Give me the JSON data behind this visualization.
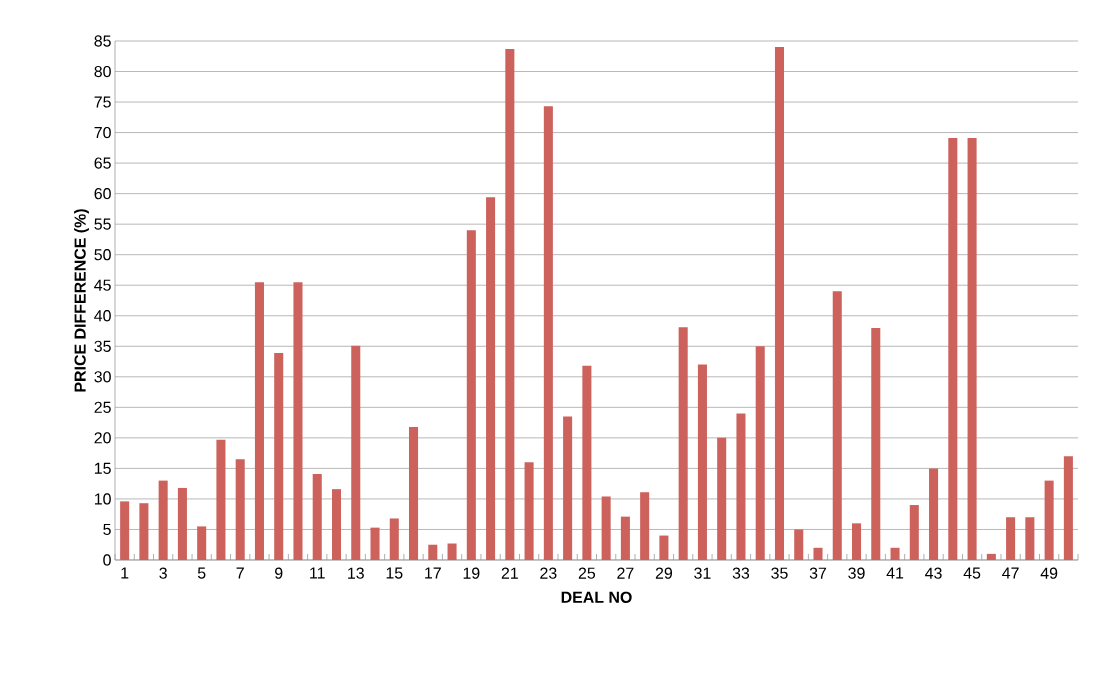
{
  "chart_data": {
    "type": "bar",
    "xlabel": "DEAL NO",
    "ylabel": "PRICE DIFFERENCE (%)",
    "categories": [
      "1",
      null,
      "3",
      null,
      "5",
      null,
      "7",
      null,
      "9",
      null,
      "11",
      null,
      "13",
      null,
      "15",
      null,
      "17",
      null,
      "19",
      null,
      "21",
      null,
      "23",
      null,
      "25",
      null,
      "27",
      null,
      "29",
      null,
      "31",
      null,
      "33",
      null,
      "35",
      null,
      "37",
      null,
      "39",
      null,
      "41",
      null,
      "43",
      null,
      "45",
      null,
      "47",
      null,
      "49",
      null
    ],
    "values": [
      9.6,
      9.3,
      13,
      11.8,
      5.5,
      19.7,
      16.5,
      45.5,
      33.9,
      45.5,
      14.1,
      11.6,
      35.1,
      5.3,
      6.8,
      21.8,
      2.5,
      2.7,
      54,
      59.4,
      83.7,
      16,
      74.3,
      23.5,
      31.8,
      10.4,
      7.1,
      11.1,
      4,
      38.1,
      32,
      20,
      24,
      35,
      84,
      5,
      2,
      44,
      6,
      38,
      2,
      9,
      15,
      69.1,
      69.1,
      1,
      7,
      7,
      13,
      17
    ],
    "color": "#cd625c",
    "ylim": [
      0,
      85
    ],
    "yticks": [
      0,
      5,
      10,
      15,
      20,
      25,
      30,
      35,
      40,
      45,
      50,
      55,
      60,
      65,
      70,
      75,
      80,
      85
    ],
    "grid": "y"
  }
}
